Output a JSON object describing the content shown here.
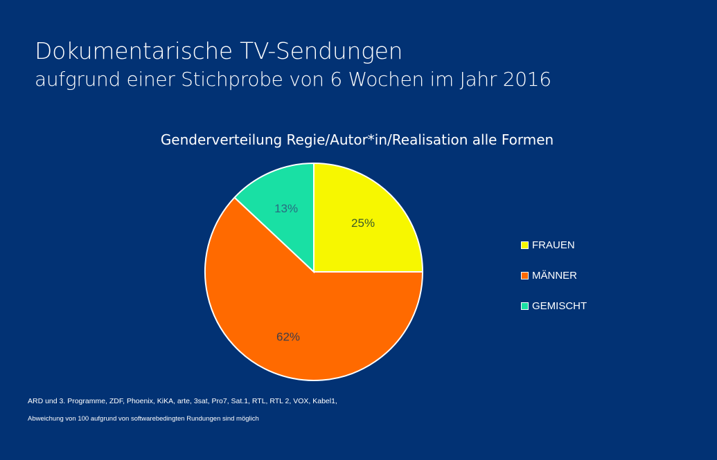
{
  "title": "Dokumentarische TV-Sendungen",
  "subtitle": "aufgrund einer Stichprobe von 6 Wochen im Jahr 2016",
  "chart_data": {
    "type": "pie",
    "title": "Genderverteilung Regie/Autor*in/Realisation alle Formen",
    "categories": [
      "FRAUEN",
      "MÄNNER",
      "GEMISCHT"
    ],
    "values": [
      25,
      62,
      13
    ],
    "labels": [
      "25%",
      "62%",
      "13%"
    ],
    "colors": [
      "#f7f700",
      "#ff6a00",
      "#19e0a4"
    ],
    "start_angle": "top",
    "direction": "clockwise",
    "legend": "right"
  },
  "footnotes": [
    "ARD und 3. Programme, ZDF, Phoenix, KiKA, arte, 3sat, Pro7, Sat.1, RTL, RTL 2, VOX, Kabel1,",
    "Abweichung von 100 aufgrund von softwarebedingten Rundungen sind möglich"
  ]
}
